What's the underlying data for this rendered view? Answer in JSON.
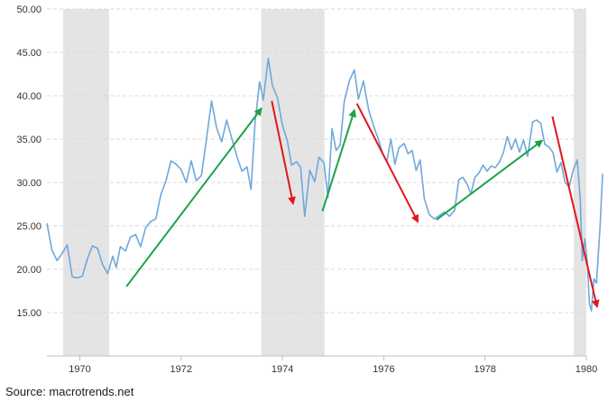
{
  "source_label": "Source: macrotrends.net",
  "chart_data": {
    "type": "line",
    "title": "",
    "xlabel": "",
    "ylabel": "",
    "xlim": [
      1969.35,
      1980.0
    ],
    "ylim": [
      10,
      50
    ],
    "grid": true,
    "y_ticks": [
      "15.00",
      "20.00",
      "25.00",
      "30.00",
      "35.00",
      "40.00",
      "45.00",
      "50.00"
    ],
    "x_ticks": [
      "1970",
      "1972",
      "1974",
      "1976",
      "1978",
      "1980"
    ],
    "recessions": [
      [
        1969.67,
        1970.58
      ],
      [
        1973.58,
        1974.83
      ],
      [
        1979.75,
        1980.0
      ]
    ],
    "series": [
      {
        "color": "#6fa8dc",
        "points": [
          [
            1969.35,
            25.3
          ],
          [
            1969.45,
            22.2
          ],
          [
            1969.55,
            21.0
          ],
          [
            1969.65,
            21.8
          ],
          [
            1969.75,
            22.8
          ],
          [
            1969.85,
            19.1
          ],
          [
            1969.95,
            19.0
          ],
          [
            1970.05,
            19.2
          ],
          [
            1970.15,
            21.2
          ],
          [
            1970.25,
            22.7
          ],
          [
            1970.35,
            22.4
          ],
          [
            1970.45,
            20.5
          ],
          [
            1970.55,
            19.5
          ],
          [
            1970.65,
            21.5
          ],
          [
            1970.72,
            20.2
          ],
          [
            1970.8,
            22.6
          ],
          [
            1970.9,
            22.1
          ],
          [
            1971.0,
            23.7
          ],
          [
            1971.1,
            24.0
          ],
          [
            1971.2,
            22.6
          ],
          [
            1971.3,
            24.8
          ],
          [
            1971.4,
            25.5
          ],
          [
            1971.5,
            25.8
          ],
          [
            1971.6,
            28.6
          ],
          [
            1971.7,
            30.2
          ],
          [
            1971.8,
            32.5
          ],
          [
            1971.9,
            32.1
          ],
          [
            1972.0,
            31.5
          ],
          [
            1972.1,
            30.0
          ],
          [
            1972.2,
            32.5
          ],
          [
            1972.3,
            30.2
          ],
          [
            1972.4,
            30.8
          ],
          [
            1972.5,
            35.0
          ],
          [
            1972.6,
            39.4
          ],
          [
            1972.7,
            36.3
          ],
          [
            1972.8,
            34.7
          ],
          [
            1972.9,
            37.2
          ],
          [
            1973.0,
            35.1
          ],
          [
            1973.1,
            33.0
          ],
          [
            1973.2,
            31.3
          ],
          [
            1973.3,
            31.8
          ],
          [
            1973.38,
            29.2
          ],
          [
            1973.46,
            37.0
          ],
          [
            1973.55,
            41.6
          ],
          [
            1973.62,
            39.5
          ],
          [
            1973.72,
            44.3
          ],
          [
            1973.8,
            41.2
          ],
          [
            1973.9,
            39.8
          ],
          [
            1974.0,
            36.6
          ],
          [
            1974.1,
            34.7
          ],
          [
            1974.18,
            32.0
          ],
          [
            1974.28,
            32.4
          ],
          [
            1974.36,
            31.7
          ],
          [
            1974.44,
            26.1
          ],
          [
            1974.54,
            31.4
          ],
          [
            1974.64,
            30.1
          ],
          [
            1974.72,
            32.9
          ],
          [
            1974.82,
            32.3
          ],
          [
            1974.9,
            28.3
          ],
          [
            1974.98,
            36.2
          ],
          [
            1975.06,
            33.7
          ],
          [
            1975.14,
            34.3
          ],
          [
            1975.22,
            39.3
          ],
          [
            1975.32,
            41.7
          ],
          [
            1975.42,
            43.0
          ],
          [
            1975.5,
            39.6
          ],
          [
            1975.6,
            41.7
          ],
          [
            1975.7,
            38.4
          ],
          [
            1975.8,
            36.5
          ],
          [
            1975.9,
            34.9
          ],
          [
            1975.98,
            33.3
          ],
          [
            1976.06,
            32.4
          ],
          [
            1976.14,
            35.0
          ],
          [
            1976.22,
            32.1
          ],
          [
            1976.3,
            34.0
          ],
          [
            1976.4,
            34.5
          ],
          [
            1976.48,
            33.3
          ],
          [
            1976.56,
            33.7
          ],
          [
            1976.64,
            31.4
          ],
          [
            1976.72,
            32.6
          ],
          [
            1976.8,
            28.2
          ],
          [
            1976.9,
            26.3
          ],
          [
            1977.0,
            25.8
          ],
          [
            1977.1,
            26.2
          ],
          [
            1977.2,
            26.6
          ],
          [
            1977.3,
            26.1
          ],
          [
            1977.4,
            26.8
          ],
          [
            1977.48,
            30.3
          ],
          [
            1977.56,
            30.6
          ],
          [
            1977.64,
            29.9
          ],
          [
            1977.72,
            28.7
          ],
          [
            1977.8,
            30.6
          ],
          [
            1977.88,
            31.1
          ],
          [
            1977.96,
            32.0
          ],
          [
            1978.04,
            31.3
          ],
          [
            1978.12,
            31.9
          ],
          [
            1978.2,
            31.7
          ],
          [
            1978.28,
            32.3
          ],
          [
            1978.36,
            33.4
          ],
          [
            1978.44,
            35.3
          ],
          [
            1978.52,
            33.8
          ],
          [
            1978.6,
            35.0
          ],
          [
            1978.68,
            33.5
          ],
          [
            1978.76,
            34.9
          ],
          [
            1978.84,
            33.0
          ],
          [
            1978.94,
            37.0
          ],
          [
            1979.02,
            37.2
          ],
          [
            1979.1,
            36.8
          ],
          [
            1979.18,
            34.4
          ],
          [
            1979.26,
            34.1
          ],
          [
            1979.34,
            33.5
          ],
          [
            1979.42,
            31.2
          ],
          [
            1979.5,
            32.3
          ],
          [
            1979.58,
            30.0
          ],
          [
            1979.66,
            29.5
          ],
          [
            1979.74,
            31.4
          ],
          [
            1979.82,
            32.6
          ],
          [
            1979.88,
            28.0
          ],
          [
            1979.92,
            21.0
          ],
          [
            1979.97,
            23.5
          ],
          [
            1980.02,
            20.8
          ],
          [
            1980.06,
            16.0
          ],
          [
            1980.1,
            15.2
          ],
          [
            1980.15,
            18.9
          ],
          [
            1980.2,
            18.4
          ],
          [
            1980.27,
            24.9
          ],
          [
            1980.32,
            31.0
          ]
        ]
      }
    ],
    "annotations": [
      {
        "type": "arrow",
        "color": "#1ba34a",
        "from": [
          1970.92,
          18.0
        ],
        "to": [
          1973.58,
          38.5
        ]
      },
      {
        "type": "arrow",
        "color": "#e3161b",
        "from": [
          1973.79,
          39.4
        ],
        "to": [
          1974.21,
          27.6
        ]
      },
      {
        "type": "arrow",
        "color": "#1ba34a",
        "from": [
          1974.79,
          26.7
        ],
        "to": [
          1975.42,
          38.3
        ]
      },
      {
        "type": "arrow",
        "color": "#e3161b",
        "from": [
          1975.47,
          39.1
        ],
        "to": [
          1976.67,
          25.5
        ]
      },
      {
        "type": "arrow",
        "color": "#1ba34a",
        "from": [
          1977.04,
          25.7
        ],
        "to": [
          1979.12,
          34.8
        ]
      },
      {
        "type": "arrow",
        "color": "#e3161b",
        "from": [
          1979.33,
          37.6
        ],
        "to": [
          1980.21,
          15.7
        ]
      }
    ]
  }
}
